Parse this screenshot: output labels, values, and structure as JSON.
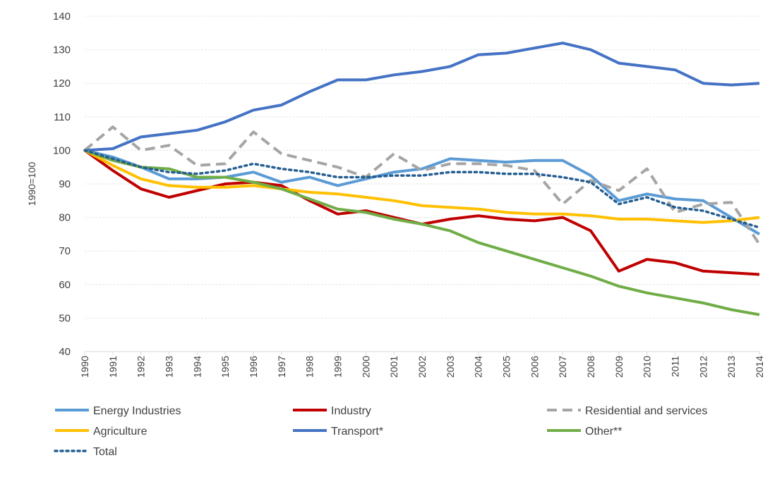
{
  "chart_data": {
    "type": "line",
    "title": "",
    "xlabel": "",
    "ylabel": "1990=100",
    "ylim": [
      40,
      140
    ],
    "yticks": [
      40,
      50,
      60,
      70,
      80,
      90,
      100,
      110,
      120,
      130,
      140
    ],
    "grid": true,
    "legend_position": "bottom",
    "x": [
      "1990",
      "1991",
      "1992",
      "1993",
      "1994",
      "1995",
      "1996",
      "1997",
      "1998",
      "1999",
      "2000",
      "2001",
      "2002",
      "2003",
      "2004",
      "2005",
      "2006",
      "2007",
      "2008",
      "2009",
      "2010",
      "2011",
      "2012",
      "2013",
      "2014"
    ],
    "series": [
      {
        "name": "Energy Industries",
        "color": "#5B9BD5",
        "style": "solid",
        "values": [
          100,
          98,
          95,
          91.5,
          91.5,
          92,
          93.5,
          90.5,
          92,
          89.5,
          91.5,
          93.5,
          94.5,
          97.5,
          97,
          96.5,
          97,
          97,
          92.5,
          85,
          87,
          85.5,
          85,
          80,
          75
        ]
      },
      {
        "name": "Industry",
        "color": "#C00000",
        "style": "solid",
        "values": [
          100,
          94,
          88.5,
          86,
          88,
          90,
          90.5,
          89.5,
          85,
          81,
          82,
          80,
          78,
          79.5,
          80.5,
          79.5,
          79,
          80,
          76,
          64,
          67.5,
          66.5,
          64,
          63.5,
          63
        ]
      },
      {
        "name": "Residential and services",
        "color": "#A5A5A5",
        "style": "dashed",
        "values": [
          100,
          107,
          100,
          101.5,
          95.5,
          96,
          105.5,
          99,
          97,
          95,
          92,
          99,
          94,
          96,
          96,
          95.5,
          94,
          84,
          91,
          88,
          94.5,
          81.5,
          84,
          84.5,
          72
        ]
      },
      {
        "name": "Agriculture",
        "color": "#FFC000",
        "style": "solid",
        "values": [
          100,
          95.5,
          91.5,
          89.5,
          89,
          89,
          89.5,
          88.5,
          87.5,
          87,
          86,
          85,
          83.5,
          83,
          82.5,
          81.5,
          81,
          81,
          80.5,
          79.5,
          79.5,
          79,
          78.5,
          79,
          80
        ]
      },
      {
        "name": "Transport*",
        "color": "#4472C4",
        "style": "solid",
        "values": [
          100,
          100.5,
          104,
          105,
          106,
          108.5,
          112,
          113.5,
          117.5,
          121,
          121,
          122.5,
          123.5,
          125,
          128.5,
          129,
          130.5,
          132,
          130,
          126,
          125,
          124,
          120,
          119.5,
          120
        ]
      },
      {
        "name": "Other**",
        "color": "#70AD47",
        "style": "solid",
        "values": [
          100,
          97,
          95,
          94.5,
          92,
          92,
          90.5,
          88.5,
          85.5,
          82.5,
          81.5,
          79.5,
          78,
          76,
          72.5,
          70,
          67.5,
          65,
          62.5,
          59.5,
          57.5,
          56,
          54.5,
          52.5,
          51
        ]
      },
      {
        "name": "Total",
        "color": "#255E91",
        "style": "dotted",
        "values": [
          100,
          97.5,
          95,
          93.5,
          93,
          94,
          96,
          94.5,
          93.5,
          92,
          92,
          92.5,
          92.5,
          93.5,
          93.5,
          93,
          93,
          92,
          90.5,
          84,
          86,
          83,
          82,
          79.5,
          77
        ]
      }
    ]
  }
}
